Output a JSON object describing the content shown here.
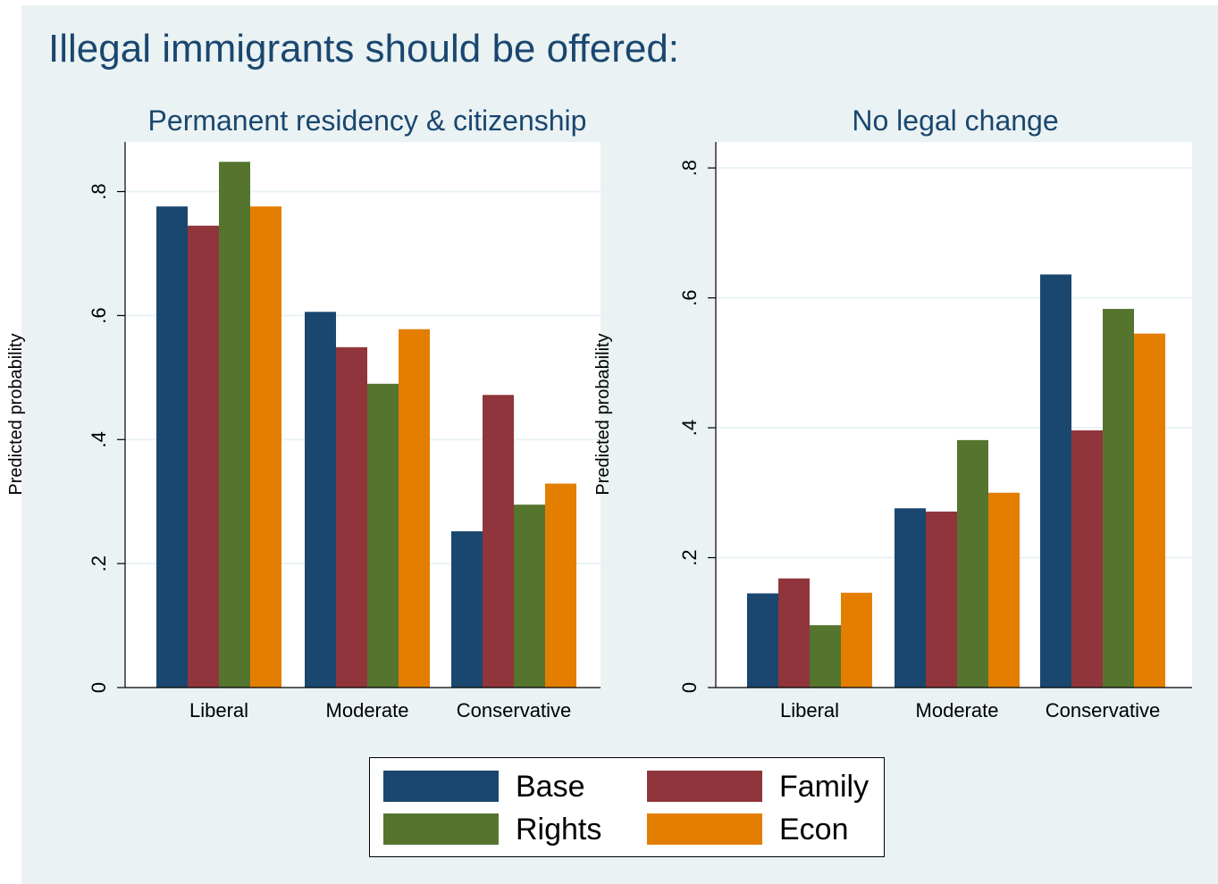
{
  "title": "Illegal immigrants should be offered:",
  "legend": [
    {
      "name": "Base",
      "color": "#1a476f"
    },
    {
      "name": "Family",
      "color": "#90353b"
    },
    {
      "name": "Rights",
      "color": "#55752f"
    },
    {
      "name": "Econ",
      "color": "#e37e00"
    }
  ],
  "chart_data": [
    {
      "type": "bar",
      "title": "Permanent residency & citizenship",
      "ylabel": "Predicted probability",
      "xlabel": "",
      "categories": [
        "Liberal",
        "Moderate",
        "Conservative"
      ],
      "ylim": [
        0,
        0.88
      ],
      "yticks": [
        0,
        0.2,
        0.4,
        0.6,
        0.8
      ],
      "ytick_labels": [
        "0",
        ".2",
        ".4",
        ".6",
        ".8"
      ],
      "grid": true,
      "series": [
        {
          "name": "Base",
          "values": [
            0.776,
            0.606,
            0.252
          ]
        },
        {
          "name": "Family",
          "values": [
            0.745,
            0.549,
            0.472
          ]
        },
        {
          "name": "Rights",
          "values": [
            0.848,
            0.49,
            0.295
          ]
        },
        {
          "name": "Econ",
          "values": [
            0.776,
            0.578,
            0.329
          ]
        }
      ]
    },
    {
      "type": "bar",
      "title": "No legal change",
      "ylabel": "Predicted probability",
      "xlabel": "",
      "categories": [
        "Liberal",
        "Moderate",
        "Conservative"
      ],
      "ylim": [
        0,
        0.84
      ],
      "yticks": [
        0,
        0.2,
        0.4,
        0.6,
        0.8
      ],
      "ytick_labels": [
        "0",
        ".2",
        ".4",
        ".6",
        ".8"
      ],
      "grid": true,
      "series": [
        {
          "name": "Base",
          "values": [
            0.145,
            0.276,
            0.636
          ]
        },
        {
          "name": "Family",
          "values": [
            0.168,
            0.271,
            0.396
          ]
        },
        {
          "name": "Rights",
          "values": [
            0.096,
            0.381,
            0.583
          ]
        },
        {
          "name": "Econ",
          "values": [
            0.146,
            0.3,
            0.545
          ]
        }
      ]
    }
  ]
}
